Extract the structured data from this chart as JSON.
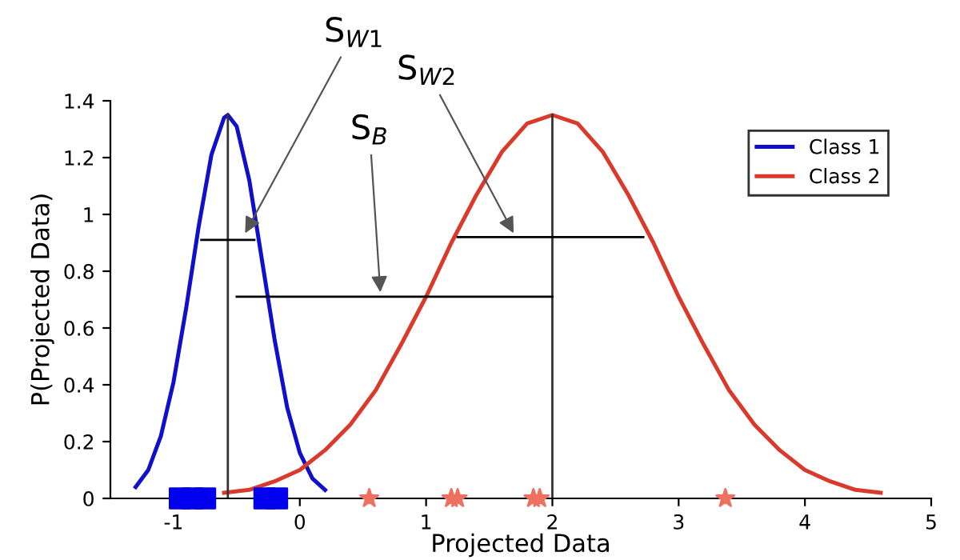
{
  "chart_data": {
    "type": "line",
    "xlabel": "Projected Data",
    "ylabel": "P(Projected Data)",
    "xlim": [
      -1.5,
      5
    ],
    "ylim": [
      0,
      1.4
    ],
    "xticks": [
      -1,
      0,
      1,
      2,
      3,
      4,
      5
    ],
    "yticks": [
      0,
      0.2,
      0.4,
      0.6,
      0.8,
      1,
      1.2,
      1.4
    ],
    "legend": "top right",
    "grid": false,
    "series": [
      {
        "name": "Class 1",
        "color": "#1010cc",
        "x": [
          -1.3,
          -1.2,
          -1.1,
          -1.0,
          -0.9,
          -0.8,
          -0.7,
          -0.6,
          -0.57,
          -0.5,
          -0.4,
          -0.3,
          -0.2,
          -0.1,
          0,
          0.1,
          0.2
        ],
        "values": [
          0.04,
          0.1,
          0.22,
          0.41,
          0.67,
          0.96,
          1.21,
          1.34,
          1.35,
          1.31,
          1.12,
          0.84,
          0.56,
          0.32,
          0.16,
          0.07,
          0.03
        ]
      },
      {
        "name": "Class 2",
        "color": "#d93a2b",
        "x": [
          -0.6,
          -0.4,
          -0.2,
          0,
          0.2,
          0.4,
          0.6,
          0.8,
          1.0,
          1.2,
          1.4,
          1.6,
          1.8,
          2.0,
          2.2,
          2.4,
          2.6,
          2.8,
          3.0,
          3.2,
          3.4,
          3.6,
          3.8,
          4.0,
          4.2,
          4.4,
          4.6
        ],
        "values": [
          0.02,
          0.03,
          0.06,
          0.1,
          0.17,
          0.26,
          0.38,
          0.54,
          0.71,
          0.9,
          1.07,
          1.22,
          1.32,
          1.35,
          1.32,
          1.22,
          1.07,
          0.9,
          0.71,
          0.54,
          0.38,
          0.26,
          0.17,
          0.1,
          0.06,
          0.03,
          0.02
        ]
      },
      {
        "type": "scatter",
        "marker": "square",
        "color": "#0000ee",
        "x": [
          -0.95,
          -0.85,
          -0.75,
          -0.28,
          -0.18
        ],
        "values": [
          0,
          0,
          0,
          0,
          0
        ]
      },
      {
        "type": "scatter",
        "marker": "star",
        "color": "#ee7060",
        "x": [
          0.55,
          1.2,
          1.25,
          1.85,
          1.9,
          3.37
        ],
        "values": [
          0,
          0,
          0,
          0,
          0,
          0
        ]
      },
      {
        "type": "line",
        "color": "#333333",
        "x": [
          -0.57,
          -0.57
        ],
        "values": [
          0,
          1.35
        ]
      },
      {
        "type": "line",
        "color": "#333333",
        "x": [
          2,
          2
        ],
        "values": [
          0,
          1.35
        ]
      },
      {
        "type": "line",
        "color": "#000000",
        "x": [
          -0.78,
          -0.36
        ],
        "values": [
          0.91,
          0.91
        ]
      },
      {
        "type": "line",
        "color": "#000000",
        "x": [
          -0.5,
          2
        ],
        "values": [
          0.71,
          0.71
        ]
      },
      {
        "type": "line",
        "color": "#000000",
        "x": [
          1.25,
          2.72
        ],
        "values": [
          0.92,
          0.92
        ]
      }
    ],
    "annotations": [
      {
        "text": "S$_{W1}$",
        "x": -0.45,
        "y": 0.92
      },
      {
        "text": "S$_{B}$",
        "x": 0.64,
        "y": 0.71
      },
      {
        "text": "S$_{W2}$",
        "x": 1.71,
        "y": 0.92
      }
    ]
  }
}
